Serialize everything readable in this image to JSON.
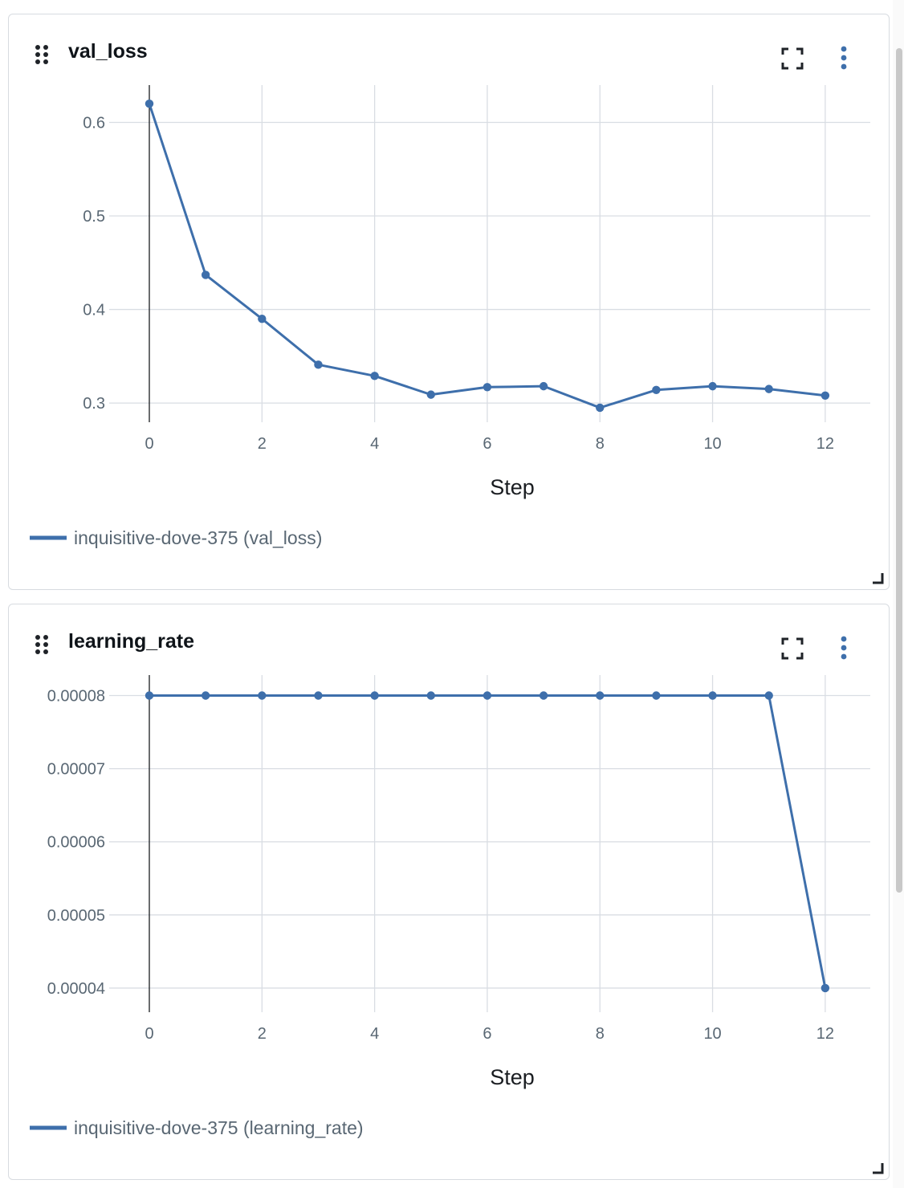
{
  "panels": [
    {
      "title": "val_loss",
      "chart_data": {
        "type": "line",
        "x": [
          0,
          1,
          2,
          3,
          4,
          5,
          6,
          7,
          8,
          9,
          10,
          11,
          12
        ],
        "series": [
          {
            "name": "inquisitive-dove-375 (val_loss)",
            "values": [
              0.62,
              0.437,
              0.39,
              0.341,
              0.329,
              0.309,
              0.317,
              0.318,
              0.295,
              0.314,
              0.318,
              0.315,
              0.308
            ]
          }
        ],
        "xlabel": "Step",
        "xticks": [
          0,
          2,
          4,
          6,
          8,
          10,
          12
        ],
        "xtick_labels": [
          "0",
          "2",
          "4",
          "6",
          "8",
          "10",
          "12"
        ],
        "yticks": [
          0.3,
          0.4,
          0.5,
          0.6
        ],
        "ytick_labels": [
          "0.3",
          "0.4",
          "0.5",
          "0.6"
        ],
        "xlim": [
          0,
          12.8
        ],
        "ylim": [
          0.2795,
          0.6399
        ],
        "grid": true,
        "legend": "bottom-left",
        "color": "#3e6fab"
      }
    },
    {
      "title": "learning_rate",
      "chart_data": {
        "type": "line",
        "x": [
          0,
          1,
          2,
          3,
          4,
          5,
          6,
          7,
          8,
          9,
          10,
          11,
          12
        ],
        "series": [
          {
            "name": "inquisitive-dove-375 (learning_rate)",
            "values": [
              8e-05,
              8e-05,
              8e-05,
              8e-05,
              8e-05,
              8e-05,
              8e-05,
              8e-05,
              8e-05,
              8e-05,
              8e-05,
              8e-05,
              4e-05
            ]
          }
        ],
        "xlabel": "Step",
        "xticks": [
          0,
          2,
          4,
          6,
          8,
          10,
          12
        ],
        "xtick_labels": [
          "0",
          "2",
          "4",
          "6",
          "8",
          "10",
          "12"
        ],
        "yticks": [
          4e-05,
          5e-05,
          6e-05,
          7e-05,
          8e-05
        ],
        "ytick_labels": [
          "0.00004",
          "0.00005",
          "0.00006",
          "0.00007",
          "0.00008"
        ],
        "xlim": [
          0,
          12.8
        ],
        "ylim": [
          3.67e-05,
          8.28e-05
        ],
        "grid": true,
        "legend": "bottom-left",
        "color": "#3e6fab"
      }
    }
  ],
  "icons": {
    "drag": "drag-handle-icon",
    "fullscreen": "fullscreen-icon",
    "menu": "kebab-menu-icon",
    "resize": "resize-handle-icon"
  }
}
